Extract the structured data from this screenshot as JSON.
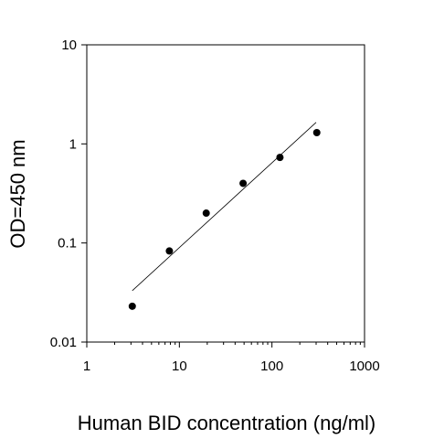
{
  "chart_data": {
    "type": "scatter",
    "xlabel": "Human BID concentration (ng/ml)",
    "ylabel": "OD=450 nm",
    "x_scale": "log",
    "y_scale": "log",
    "xlim": [
      1,
      1000
    ],
    "ylim": [
      0.01,
      10
    ],
    "x_ticks": [
      {
        "value": 1,
        "label": "1"
      },
      {
        "value": 10,
        "label": "10"
      },
      {
        "value": 100,
        "label": "100"
      },
      {
        "value": 1000,
        "label": "1000"
      }
    ],
    "y_ticks": [
      {
        "value": 0.01,
        "label": "0.01"
      },
      {
        "value": 0.1,
        "label": "0.1"
      },
      {
        "value": 1,
        "label": "1"
      },
      {
        "value": 10,
        "label": "10"
      }
    ],
    "points": [
      {
        "x": 3.1,
        "y": 0.023
      },
      {
        "x": 7.8,
        "y": 0.083
      },
      {
        "x": 19.5,
        "y": 0.2
      },
      {
        "x": 48.8,
        "y": 0.4
      },
      {
        "x": 122,
        "y": 0.73
      },
      {
        "x": 305,
        "y": 1.3
      }
    ],
    "fit_line": [
      {
        "x": 3.1,
        "y": 0.033
      },
      {
        "x": 300,
        "y": 1.65
      }
    ],
    "grid": false,
    "legend": "none"
  }
}
